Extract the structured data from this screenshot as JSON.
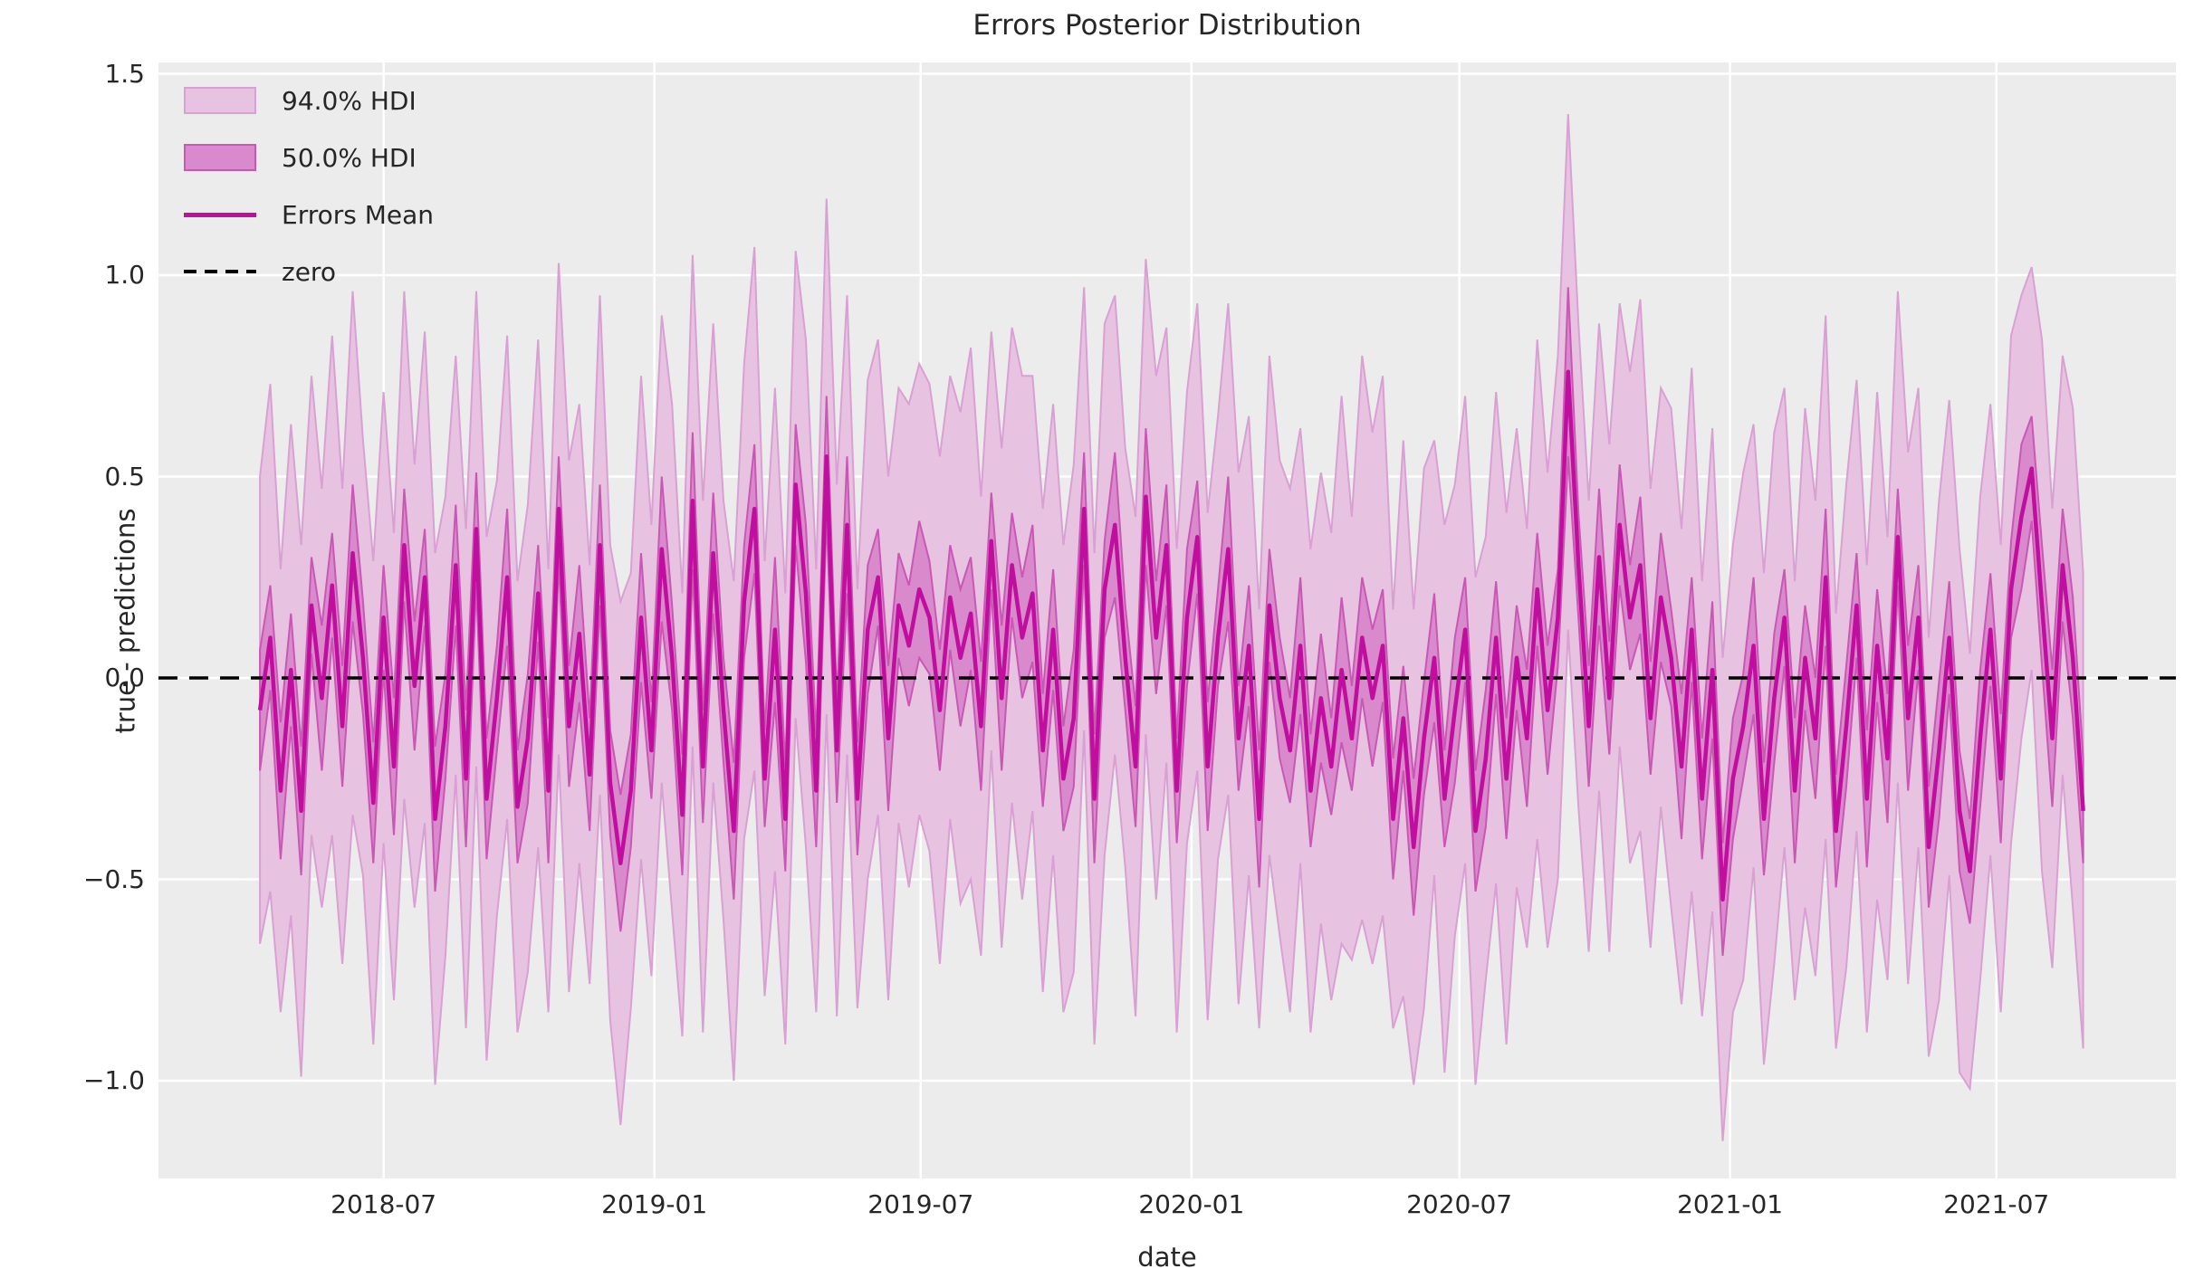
{
  "figure": {
    "title": "Errors Posterior Distribution",
    "xlabel": "date",
    "ylabel": "true - predictions"
  },
  "legend": {
    "items": [
      {
        "label": "94.0% HDI",
        "type": "patch",
        "fill": "#e7c3e1",
        "edge": "#d9a0d3"
      },
      {
        "label": "50.0% HDI",
        "type": "patch",
        "fill": "#d98acc",
        "edge": "#c858b4"
      },
      {
        "label": "Errors Mean",
        "type": "line",
        "color": "#c00f9e"
      },
      {
        "label": "zero",
        "type": "dashed-line",
        "color": "#000000"
      }
    ]
  },
  "colors": {
    "figure_bg": "#ffffff",
    "axes_bg": "#ececec",
    "grid": "#ffffff",
    "text": "#262626",
    "hdi94_fill": "#e7c3e1",
    "hdi94_edge": "#d9a0d3",
    "hdi50_fill": "#d98acc",
    "hdi50_edge": "#c858b4",
    "mean_line": "#c00f9e",
    "zero_line": "#000000"
  },
  "chart_data": {
    "type": "line",
    "title": "Errors Posterior Distribution",
    "xlabel": "date",
    "ylabel": "true - predictions",
    "grid": true,
    "legend_position": "upper-left",
    "x_start_date": "2018-04-08",
    "x_step_days": 7,
    "n_points": 178,
    "xlim": [
      "2018-01-29",
      "2021-10-31"
    ],
    "ylim": [
      -1.2427,
      1.5281
    ],
    "yticks": [
      1.5,
      1.0,
      0.5,
      0.0,
      -0.5,
      -1.0
    ],
    "ytick_labels": [
      "1.5",
      "1.0",
      "0.5",
      "0.0",
      "−0.5",
      "−1.0"
    ],
    "xticks": [
      "2018-07-01",
      "2019-01-01",
      "2019-07-01",
      "2020-01-01",
      "2020-07-01",
      "2021-01-01",
      "2021-07-01"
    ],
    "xtick_labels": [
      "2018-07",
      "2019-01",
      "2019-07",
      "2020-01",
      "2020-07",
      "2021-01",
      "2021-07"
    ],
    "reference_line": {
      "label": "zero",
      "value": 0.0
    },
    "series": [
      {
        "name": "Errors Mean",
        "values": [
          -0.08,
          0.1,
          -0.28,
          0.02,
          -0.33,
          0.18,
          -0.05,
          0.23,
          -0.12,
          0.31,
          0.05,
          -0.31,
          0.15,
          -0.22,
          0.33,
          -0.02,
          0.25,
          -0.35,
          -0.12,
          0.28,
          -0.25,
          0.37,
          -0.3,
          -0.05,
          0.25,
          -0.32,
          -0.15,
          0.21,
          -0.28,
          0.42,
          -0.12,
          0.11,
          -0.24,
          0.33,
          -0.26,
          -0.46,
          -0.28,
          0.15,
          -0.18,
          0.32,
          0.05,
          -0.34,
          0.44,
          -0.22,
          0.31,
          -0.08,
          -0.38,
          0.19,
          0.42,
          -0.25,
          0.12,
          -0.35,
          0.48,
          0.21,
          -0.28,
          0.55,
          -0.18,
          0.38,
          -0.3,
          0.12,
          0.25,
          -0.15,
          0.18,
          0.08,
          0.22,
          0.15,
          -0.08,
          0.2,
          0.05,
          0.16,
          -0.12,
          0.34,
          -0.05,
          0.28,
          0.1,
          0.21,
          -0.18,
          0.12,
          -0.25,
          -0.1,
          0.42,
          -0.3,
          0.22,
          0.38,
          0.05,
          -0.22,
          0.45,
          0.1,
          0.33,
          -0.28,
          0.15,
          0.35,
          -0.22,
          0.1,
          0.32,
          -0.15,
          0.08,
          -0.35,
          0.18,
          -0.05,
          -0.18,
          0.08,
          -0.28,
          -0.05,
          -0.22,
          0.02,
          -0.15,
          0.1,
          -0.05,
          0.08,
          -0.35,
          -0.1,
          -0.42,
          -0.15,
          0.05,
          -0.3,
          -0.08,
          0.12,
          -0.38,
          -0.2,
          0.1,
          -0.25,
          0.05,
          -0.15,
          0.22,
          -0.08,
          0.15,
          0.76,
          0.28,
          -0.12,
          0.3,
          -0.05,
          0.38,
          0.15,
          0.28,
          -0.1,
          0.2,
          0.05,
          -0.22,
          0.12,
          -0.3,
          0.02,
          -0.55,
          -0.25,
          -0.12,
          0.08,
          -0.35,
          -0.05,
          0.15,
          -0.28,
          0.05,
          -0.15,
          0.25,
          -0.38,
          -0.12,
          0.18,
          -0.3,
          0.08,
          -0.2,
          0.35,
          -0.1,
          0.15,
          -0.42,
          -0.18,
          0.1,
          -0.33,
          -0.48,
          -0.15,
          0.12,
          -0.25,
          0.22,
          0.4,
          0.52,
          0.18,
          -0.15,
          0.28,
          0.05,
          -0.33
        ]
      }
    ],
    "bands": [
      {
        "name": "94.0% HDI",
        "half_width": [
          0.58,
          0.63,
          0.55,
          0.61,
          0.66,
          0.57,
          0.52,
          0.62,
          0.59,
          0.65,
          0.54,
          0.6,
          0.56,
          0.58,
          0.63,
          0.55,
          0.61,
          0.66,
          0.57,
          0.52,
          0.62,
          0.59,
          0.65,
          0.54,
          0.6,
          0.56,
          0.58,
          0.63,
          0.55,
          0.61,
          0.66,
          0.57,
          0.52,
          0.62,
          0.59,
          0.65,
          0.54,
          0.6,
          0.56,
          0.58,
          0.63,
          0.55,
          0.61,
          0.66,
          0.57,
          0.52,
          0.62,
          0.59,
          0.65,
          0.54,
          0.6,
          0.56,
          0.58,
          0.63,
          0.55,
          0.64,
          0.66,
          0.57,
          0.52,
          0.62,
          0.59,
          0.65,
          0.54,
          0.6,
          0.56,
          0.58,
          0.63,
          0.55,
          0.61,
          0.66,
          0.57,
          0.52,
          0.62,
          0.59,
          0.65,
          0.54,
          0.6,
          0.56,
          0.58,
          0.63,
          0.55,
          0.61,
          0.66,
          0.57,
          0.52,
          0.62,
          0.59,
          0.65,
          0.54,
          0.6,
          0.56,
          0.58,
          0.63,
          0.55,
          0.61,
          0.66,
          0.57,
          0.52,
          0.62,
          0.59,
          0.65,
          0.54,
          0.6,
          0.56,
          0.58,
          0.68,
          0.55,
          0.7,
          0.66,
          0.67,
          0.52,
          0.69,
          0.59,
          0.67,
          0.54,
          0.68,
          0.56,
          0.58,
          0.63,
          0.55,
          0.61,
          0.66,
          0.57,
          0.52,
          0.62,
          0.59,
          0.65,
          0.64,
          0.6,
          0.56,
          0.58,
          0.63,
          0.55,
          0.61,
          0.66,
          0.57,
          0.52,
          0.62,
          0.59,
          0.65,
          0.54,
          0.6,
          0.6,
          0.58,
          0.63,
          0.55,
          0.61,
          0.66,
          0.57,
          0.52,
          0.62,
          0.59,
          0.65,
          0.54,
          0.6,
          0.56,
          0.58,
          0.63,
          0.55,
          0.61,
          0.66,
          0.57,
          0.52,
          0.62,
          0.59,
          0.65,
          0.54,
          0.6,
          0.56,
          0.58,
          0.63,
          0.55,
          0.5,
          0.66,
          0.57,
          0.52,
          0.62,
          0.59
        ]
      },
      {
        "name": "50.0% HDI",
        "half_width": [
          0.15,
          0.13,
          0.17,
          0.14,
          0.16,
          0.12,
          0.18,
          0.13,
          0.15,
          0.17,
          0.14,
          0.15,
          0.13,
          0.17,
          0.14,
          0.16,
          0.12,
          0.18,
          0.13,
          0.15,
          0.17,
          0.14,
          0.15,
          0.13,
          0.17,
          0.14,
          0.16,
          0.12,
          0.18,
          0.13,
          0.15,
          0.17,
          0.14,
          0.15,
          0.13,
          0.17,
          0.14,
          0.16,
          0.12,
          0.18,
          0.13,
          0.15,
          0.17,
          0.14,
          0.15,
          0.13,
          0.17,
          0.14,
          0.16,
          0.12,
          0.18,
          0.13,
          0.15,
          0.17,
          0.14,
          0.15,
          0.13,
          0.17,
          0.14,
          0.16,
          0.12,
          0.18,
          0.13,
          0.15,
          0.17,
          0.14,
          0.15,
          0.13,
          0.17,
          0.14,
          0.16,
          0.12,
          0.18,
          0.13,
          0.15,
          0.17,
          0.14,
          0.15,
          0.13,
          0.17,
          0.14,
          0.16,
          0.12,
          0.18,
          0.13,
          0.15,
          0.17,
          0.14,
          0.15,
          0.13,
          0.17,
          0.14,
          0.16,
          0.12,
          0.18,
          0.13,
          0.15,
          0.17,
          0.14,
          0.15,
          0.13,
          0.17,
          0.14,
          0.16,
          0.12,
          0.18,
          0.13,
          0.15,
          0.17,
          0.14,
          0.15,
          0.13,
          0.17,
          0.14,
          0.16,
          0.12,
          0.18,
          0.13,
          0.15,
          0.17,
          0.14,
          0.15,
          0.13,
          0.17,
          0.14,
          0.16,
          0.12,
          0.21,
          0.13,
          0.15,
          0.17,
          0.14,
          0.15,
          0.13,
          0.17,
          0.14,
          0.16,
          0.12,
          0.18,
          0.13,
          0.15,
          0.17,
          0.14,
          0.15,
          0.13,
          0.17,
          0.14,
          0.16,
          0.12,
          0.18,
          0.13,
          0.15,
          0.17,
          0.14,
          0.15,
          0.13,
          0.17,
          0.14,
          0.16,
          0.12,
          0.18,
          0.13,
          0.15,
          0.17,
          0.14,
          0.15,
          0.13,
          0.17,
          0.14,
          0.16,
          0.12,
          0.18,
          0.13,
          0.15,
          0.17,
          0.14,
          0.15,
          0.13
        ]
      }
    ]
  }
}
